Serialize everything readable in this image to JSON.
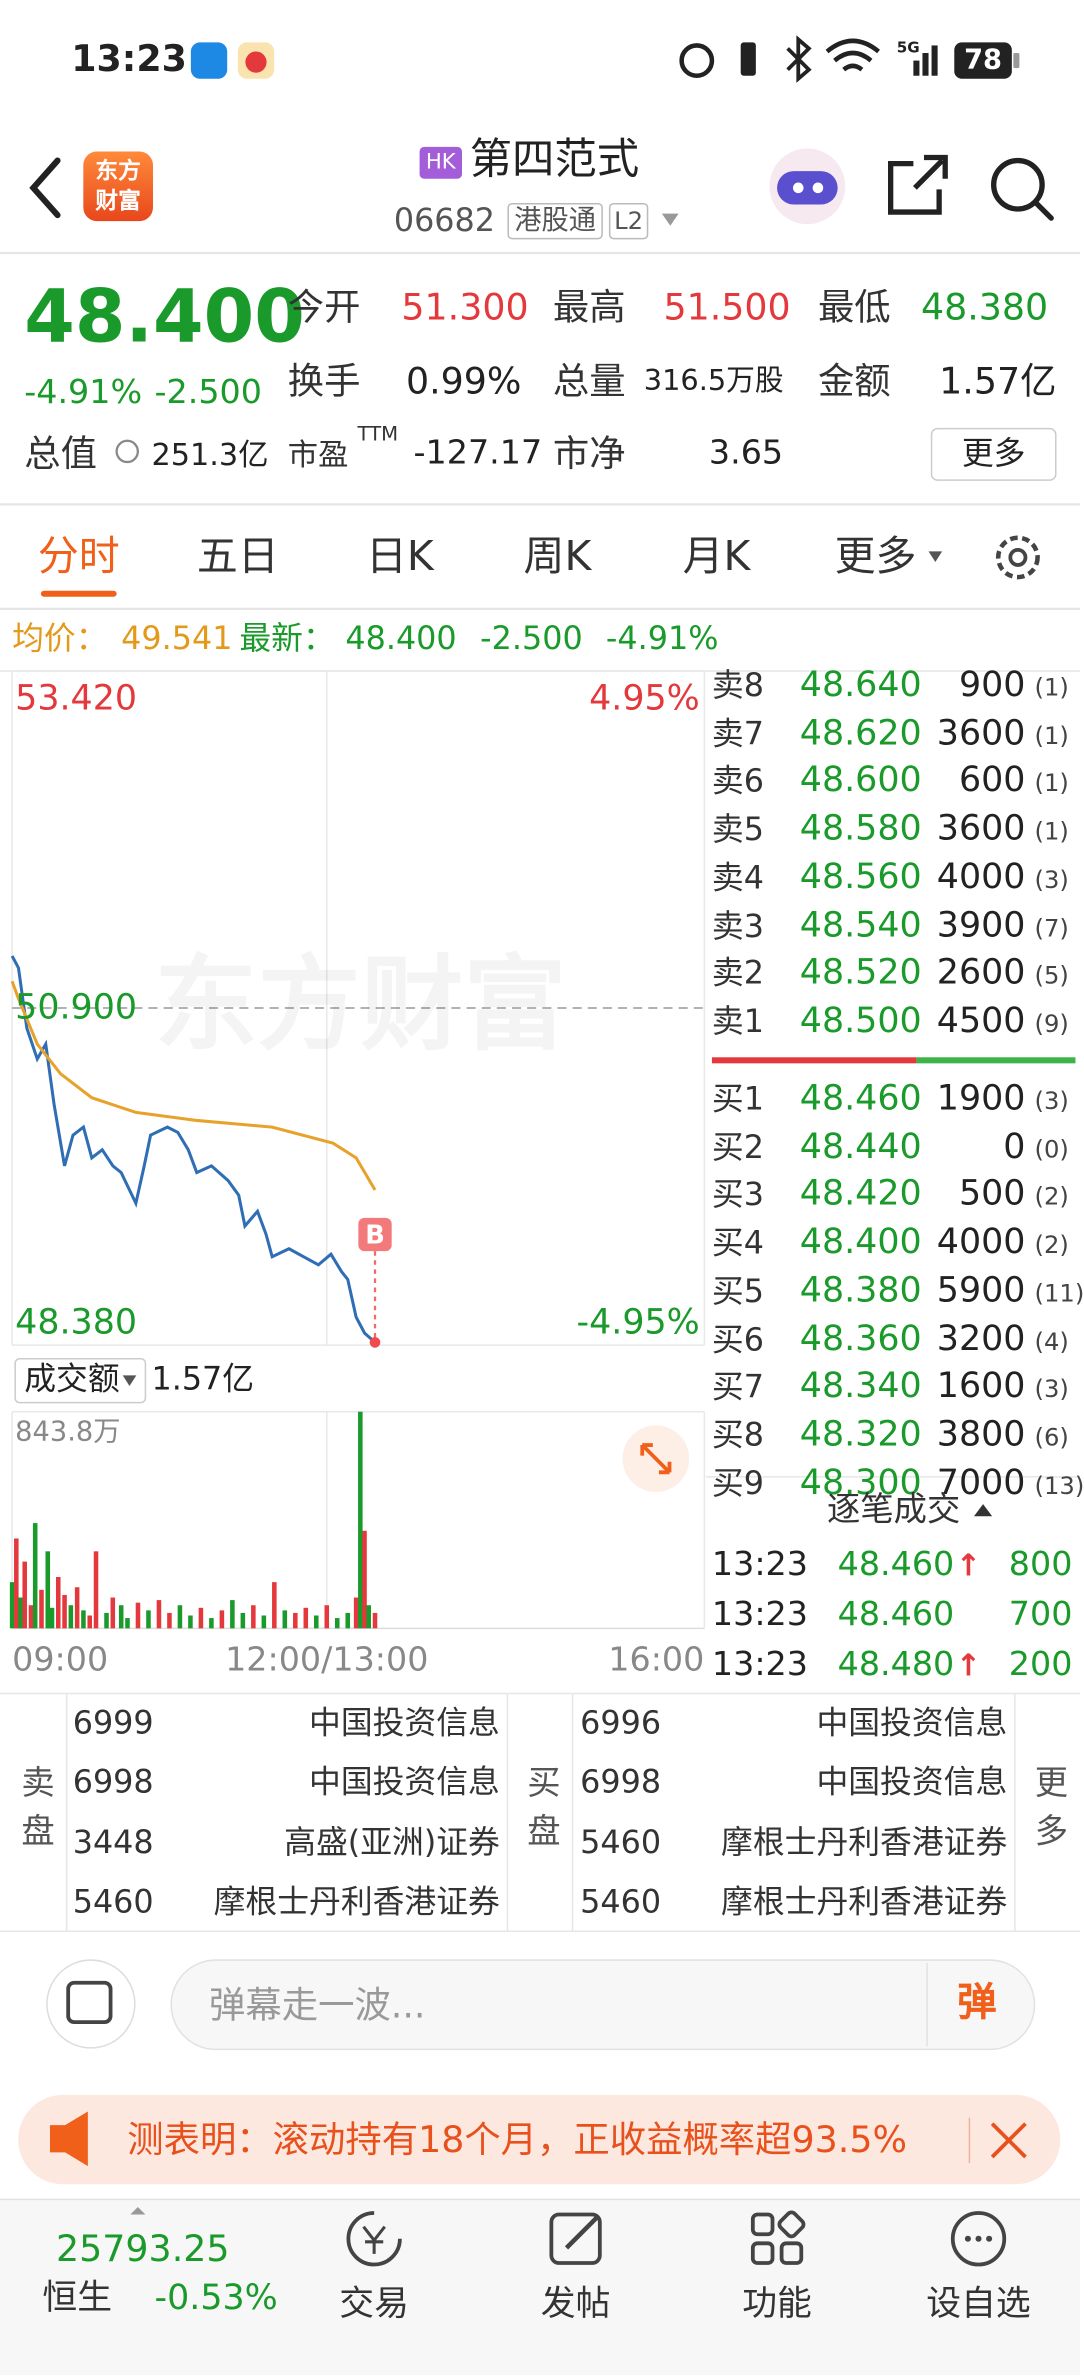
{
  "status_bar": {
    "time": "13:23",
    "network": "5G",
    "battery": "78"
  },
  "header": {
    "logo": [
      "东方",
      "财富"
    ],
    "market_badge": "HK",
    "name": "第四范式",
    "code": "06682",
    "connect": "港股通",
    "level": "L2"
  },
  "quote": {
    "price": "48.400",
    "change_pct": "-4.91%",
    "change": "-2.500",
    "fields": [
      {
        "label": "今开",
        "value": "51.300",
        "color": "#e4393c"
      },
      {
        "label": "最高",
        "value": "51.500",
        "color": "#e4393c"
      },
      {
        "label": "最低",
        "value": "48.380",
        "color": "#1a9a2a"
      },
      {
        "label": "换手",
        "value": "0.99%"
      },
      {
        "label": "总量",
        "value": "316.5万股"
      },
      {
        "label": "金额",
        "value": "1.57亿"
      },
      {
        "label": "总值",
        "value": "251.3亿"
      },
      {
        "label": "市盈",
        "sup": "TTM",
        "value": "-127.17"
      },
      {
        "label": "市净",
        "value": "3.65"
      }
    ],
    "more": "更多"
  },
  "tabs": [
    "分时",
    "五日",
    "日K",
    "周K",
    "月K",
    "更多"
  ],
  "summary": {
    "avg_label": "均价：",
    "avg": "49.541",
    "latest_label": "最新：",
    "latest": "48.400",
    "change": "-2.500",
    "change_pct": "-4.91%"
  },
  "watermark": "东方财富",
  "chart_data": [
    {
      "type": "line",
      "annotation": "B",
      "xlim": [
        0,
        330
      ],
      "xticks": [
        {
          "value": 0,
          "label": "09:00"
        },
        {
          "value": 150,
          "label": "12:00/13:00"
        },
        {
          "value": 330,
          "label": "16:00"
        }
      ],
      "ylim": [
        48.38,
        53.42
      ],
      "yticks": [
        {
          "value": 53.42,
          "label": "53.420"
        },
        {
          "value": 50.9,
          "label": "50.900"
        },
        {
          "value": 48.38,
          "label": "48.380"
        }
      ],
      "y2lim": [
        -4.95,
        4.95
      ],
      "y2ticks": [
        {
          "value": 4.95,
          "label": "4.95%"
        },
        {
          "value": -4.95,
          "label": "-4.95%"
        }
      ],
      "series": [
        {
          "color": "#2f6db5",
          "x": [
            0,
            3,
            7,
            12,
            16,
            20,
            25,
            29,
            34,
            38,
            43,
            48,
            52,
            59,
            63,
            66,
            74,
            79,
            84,
            88,
            95,
            103,
            108,
            111,
            117,
            121,
            124,
            132,
            139,
            146,
            152,
            157,
            160,
            164,
            168,
            173
          ],
          "values": [
            51.29,
            51.2,
            50.75,
            50.52,
            50.63,
            50.18,
            49.72,
            49.95,
            50.01,
            49.78,
            49.84,
            49.72,
            49.67,
            49.44,
            49.72,
            49.95,
            50.01,
            49.97,
            49.84,
            49.67,
            49.72,
            49.61,
            49.5,
            49.27,
            49.38,
            49.21,
            49.04,
            49.1,
            49.04,
            48.98,
            49.06,
            48.93,
            48.87,
            48.59,
            48.47,
            48.4
          ]
        },
        {
          "color": "#e7a22c",
          "x": [
            0,
            3,
            12,
            23,
            38,
            59,
            88,
            124,
            153,
            164,
            173
          ],
          "values": [
            51.1,
            50.97,
            50.63,
            50.41,
            50.23,
            50.12,
            50.06,
            50.01,
            49.89,
            49.78,
            49.54
          ]
        }
      ]
    },
    {
      "type": "bar",
      "xlim": [
        0,
        330
      ],
      "ylim": [
        0,
        843.8
      ],
      "yticks": [
        {
          "value": 843.8,
          "label": "843.8万"
        }
      ],
      "x": [
        0,
        2,
        4,
        6,
        9,
        11,
        14,
        17,
        19,
        22,
        25,
        28,
        31,
        34,
        37,
        40,
        45,
        48,
        52,
        55,
        60,
        65,
        70,
        75,
        80,
        85,
        90,
        95,
        100,
        105,
        110,
        115,
        120,
        125,
        130,
        135,
        140,
        145,
        150,
        155,
        160,
        164,
        166,
        168,
        170,
        173
      ],
      "values": [
        180,
        350,
        120,
        260,
        90,
        410,
        150,
        300,
        80,
        200,
        130,
        90,
        160,
        70,
        50,
        300,
        60,
        120,
        90,
        40,
        100,
        70,
        110,
        60,
        90,
        50,
        80,
        40,
        70,
        110,
        60,
        90,
        50,
        180,
        70,
        60,
        80,
        50,
        90,
        40,
        60,
        120,
        843.8,
        380,
        90,
        60
      ],
      "colors": [
        "#1a9a2a",
        "#e4393c",
        "#1a9a2a",
        "#e4393c",
        "#e4393c",
        "#1a9a2a",
        "#e4393c",
        "#1a9a2a",
        "#1a9a2a",
        "#e4393c",
        "#e4393c",
        "#1a9a2a",
        "#e4393c",
        "#1a9a2a",
        "#e4393c",
        "#e4393c",
        "#1a9a2a",
        "#e4393c",
        "#1a9a2a",
        "#1a9a2a",
        "#e4393c",
        "#1a9a2a",
        "#e4393c",
        "#e4393c",
        "#1a9a2a",
        "#1a9a2a",
        "#e4393c",
        "#1a9a2a",
        "#e4393c",
        "#1a9a2a",
        "#1a9a2a",
        "#e4393c",
        "#1a9a2a",
        "#e4393c",
        "#1a9a2a",
        "#e4393c",
        "#e4393c",
        "#1a9a2a",
        "#e4393c",
        "#1a9a2a",
        "#1a9a2a",
        "#e4393c",
        "#1a9a2a",
        "#e4393c",
        "#1a9a2a",
        "#e4393c"
      ]
    }
  ],
  "volume_header": {
    "selector": "成交额",
    "value": "1.57亿"
  },
  "order_book": {
    "asks": [
      [
        "卖8",
        "48.640",
        "900",
        "(1)"
      ],
      [
        "卖7",
        "48.620",
        "3600",
        "(1)"
      ],
      [
        "卖6",
        "48.600",
        "600",
        "(1)"
      ],
      [
        "卖5",
        "48.580",
        "3600",
        "(1)"
      ],
      [
        "卖4",
        "48.560",
        "4000",
        "(3)"
      ],
      [
        "卖3",
        "48.540",
        "3900",
        "(7)"
      ],
      [
        "卖2",
        "48.520",
        "2600",
        "(5)"
      ],
      [
        "卖1",
        "48.500",
        "4500",
        "(9)"
      ]
    ],
    "bids": [
      [
        "买1",
        "48.460",
        "1900",
        "(3)"
      ],
      [
        "买2",
        "48.440",
        "0",
        "(0)"
      ],
      [
        "买3",
        "48.420",
        "500",
        "(2)"
      ],
      [
        "买4",
        "48.400",
        "4000",
        "(2)"
      ],
      [
        "买5",
        "48.380",
        "5900",
        "(11)"
      ],
      [
        "买6",
        "48.360",
        "3200",
        "(4)"
      ],
      [
        "买7",
        "48.340",
        "1600",
        "(3)"
      ],
      [
        "买8",
        "48.320",
        "3800",
        "(6)"
      ],
      [
        "买9",
        "48.300",
        "7000",
        "(13)"
      ]
    ]
  },
  "trades": {
    "title": "逐笔成交",
    "rows": [
      {
        "time": "13:23",
        "price": "48.460",
        "arrow": "↑",
        "volume": "800"
      },
      {
        "time": "13:23",
        "price": "48.460",
        "volume": "700"
      },
      {
        "time": "13:23",
        "price": "48.480",
        "arrow": "↑",
        "volume": "200"
      }
    ]
  },
  "broker_queue": {
    "sell_label": "卖盘",
    "buy_label": "买盘",
    "more": "更多",
    "sell": [
      [
        "6999",
        "中国投资信息"
      ],
      [
        "6998",
        "中国投资信息"
      ],
      [
        "3448",
        "高盛(亚洲)证券"
      ],
      [
        "5460",
        "摩根士丹利香港证券"
      ]
    ],
    "buy": [
      [
        "6996",
        "中国投资信息"
      ],
      [
        "6998",
        "中国投资信息"
      ],
      [
        "5460",
        "摩根士丹利香港证券"
      ],
      [
        "5460",
        "摩根士丹利香港证券"
      ]
    ]
  },
  "comment": {
    "placeholder": "弹幕走一波...",
    "button": "弹"
  },
  "banner": {
    "text": "测表明：滚动持有18个月，正收益概率超93.5%"
  },
  "bottom_nav": {
    "index_value": "25793.25",
    "index_name": "恒生",
    "index_change": "-0.53%",
    "items": [
      "交易",
      "发帖",
      "功能",
      "设自选"
    ]
  }
}
